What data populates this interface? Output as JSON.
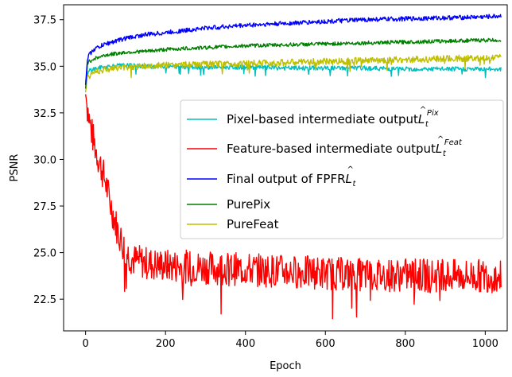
{
  "chart_data": {
    "type": "line",
    "xlabel": "Epoch",
    "ylabel": "PSNR",
    "xlim": [
      -55,
      1055
    ],
    "ylim": [
      20.8,
      38.3
    ],
    "x_ticks": [
      0,
      200,
      400,
      600,
      800,
      1000
    ],
    "y_ticks": [
      22.5,
      25.0,
      27.5,
      30.0,
      32.5,
      35.0,
      37.5
    ],
    "legend_position": "center-right",
    "grid": false,
    "series": [
      {
        "name": "Pixel-based intermediate output",
        "math": "L",
        "math_sup": "Pix",
        "color": "#00bfbf",
        "x": [
          0,
          10,
          30,
          60,
          100,
          150,
          200,
          300,
          400,
          500,
          600,
          700,
          800,
          900,
          1000,
          1040
        ],
        "y": [
          34.2,
          34.8,
          34.9,
          35.0,
          35.05,
          35.0,
          35.0,
          34.95,
          34.95,
          34.9,
          34.9,
          34.9,
          34.85,
          34.85,
          34.85,
          34.85
        ]
      },
      {
        "name": "Feature-based intermediate output",
        "math": "L",
        "math_sup": "Feat",
        "color": "#ff0000",
        "x": [
          0,
          10,
          20,
          30,
          40,
          50,
          60,
          70,
          80,
          90,
          100,
          110,
          120,
          140,
          160,
          200,
          300,
          400,
          500,
          600,
          700,
          800,
          900,
          1000,
          1040
        ],
        "y": [
          33.5,
          32.0,
          31.0,
          30.2,
          29.5,
          28.8,
          27.8,
          27.0,
          26.2,
          25.6,
          25.1,
          24.8,
          24.6,
          24.5,
          24.4,
          24.3,
          24.2,
          24.1,
          24.0,
          23.9,
          23.8,
          23.8,
          23.75,
          23.75,
          23.7
        ]
      },
      {
        "name": "Final output of FPFR",
        "math": "L",
        "math_sup": "",
        "color": "#0000ff",
        "x": [
          0,
          5,
          20,
          50,
          100,
          150,
          200,
          300,
          400,
          500,
          600,
          700,
          800,
          900,
          1000,
          1040
        ],
        "y": [
          34.0,
          35.5,
          35.9,
          36.2,
          36.5,
          36.7,
          36.8,
          37.05,
          37.2,
          37.3,
          37.4,
          37.5,
          37.55,
          37.6,
          37.65,
          37.7
        ]
      },
      {
        "name": "PurePix",
        "color": "#008000",
        "x": [
          0,
          5,
          20,
          50,
          100,
          150,
          200,
          300,
          400,
          500,
          600,
          700,
          800,
          900,
          1000,
          1040
        ],
        "y": [
          33.8,
          35.2,
          35.4,
          35.6,
          35.75,
          35.8,
          35.9,
          36.0,
          36.1,
          36.15,
          36.2,
          36.25,
          36.3,
          36.35,
          36.4,
          36.4
        ]
      },
      {
        "name": "PureFeat",
        "color": "#bfbf00",
        "x": [
          0,
          5,
          20,
          50,
          100,
          150,
          200,
          300,
          400,
          500,
          600,
          700,
          800,
          900,
          1000,
          1040
        ],
        "y": [
          33.6,
          34.5,
          34.7,
          34.85,
          34.95,
          35.0,
          35.05,
          35.1,
          35.15,
          35.2,
          35.25,
          35.3,
          35.35,
          35.4,
          35.45,
          35.5
        ]
      }
    ]
  }
}
